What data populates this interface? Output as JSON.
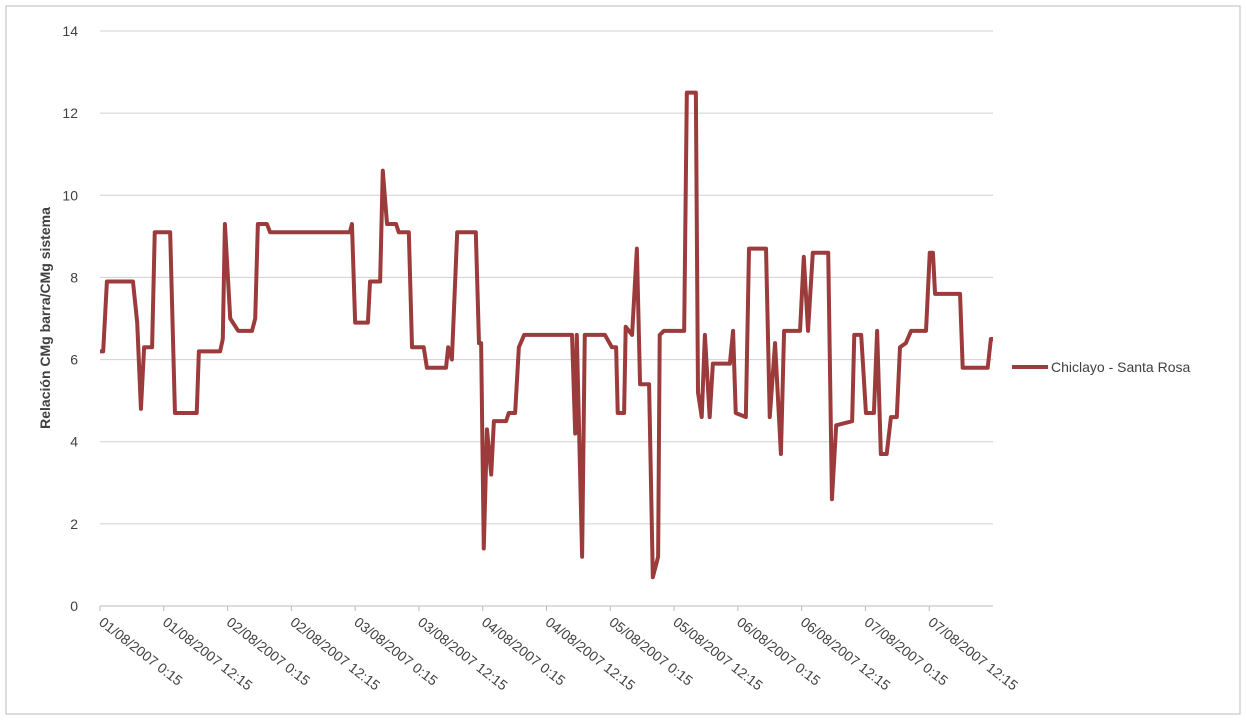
{
  "chart_data": {
    "type": "line",
    "y_label": "Relación CMg barra/CMg sistema",
    "x": [
      0,
      0.6,
      1.3,
      6.2,
      7.0,
      7.7,
      8.3,
      9.8,
      10.3,
      13.2,
      14.1,
      18.2,
      18.6,
      22.6,
      23.1,
      23.5,
      24.5,
      26.0,
      28.6,
      29.2,
      29.7,
      31.4,
      32.0,
      47.0,
      47.4,
      48.0,
      50.4,
      50.8,
      52.7,
      53.2,
      54.0,
      55.7,
      56.2,
      58.1,
      58.7,
      60.9,
      61.5,
      65.1,
      65.5,
      66.2,
      67.2,
      70.7,
      71.3,
      71.7,
      72.2,
      72.8,
      73.6,
      74.1,
      76.4,
      76.9,
      78.1,
      78.8,
      79.8,
      88.8,
      89.4,
      89.7,
      90.7,
      91.2,
      95.0,
      96.3,
      97.1,
      97.4,
      98.6,
      98.9,
      100.1,
      101.0,
      101.6,
      103.3,
      104.0,
      105.0,
      105.3,
      106.1,
      109.9,
      110.4,
      112.1,
      112.5,
      113.2,
      113.8,
      114.7,
      115.3,
      118.5,
      119.1,
      119.6,
      121.5,
      122.1,
      125.3,
      126.0,
      127.0,
      128.1,
      128.7,
      131.7,
      132.4,
      133.2,
      134.1,
      137.0,
      137.7,
      138.5,
      141.5,
      141.9,
      143.2,
      144.1,
      145.6,
      146.2,
      146.9,
      148.0,
      148.8,
      149.9,
      150.5,
      151.6,
      152.6,
      155.4,
      156.1,
      156.7,
      157.1,
      161.8,
      162.3,
      167.0,
      167.6,
      168
    ],
    "series": [
      {
        "name": "Chiclayo - Santa Rosa",
        "color": "#9b3b3b",
        "values": [
          6.2,
          6.2,
          7.9,
          7.9,
          6.9,
          4.8,
          6.3,
          6.3,
          9.1,
          9.1,
          4.7,
          4.7,
          6.2,
          6.2,
          6.5,
          9.3,
          7.0,
          6.7,
          6.7,
          7.0,
          9.3,
          9.3,
          9.1,
          9.1,
          9.3,
          6.9,
          6.9,
          7.9,
          7.9,
          10.6,
          9.3,
          9.3,
          9.1,
          9.1,
          6.3,
          6.3,
          5.8,
          5.8,
          6.3,
          6.0,
          9.1,
          9.1,
          6.4,
          6.4,
          1.4,
          4.3,
          3.2,
          4.5,
          4.5,
          4.7,
          4.7,
          6.3,
          6.6,
          6.6,
          4.2,
          6.6,
          1.2,
          6.6,
          6.6,
          6.3,
          6.3,
          4.7,
          4.7,
          6.8,
          6.6,
          8.7,
          5.4,
          5.4,
          0.7,
          1.2,
          6.6,
          6.7,
          6.7,
          12.5,
          12.5,
          5.2,
          4.6,
          6.6,
          4.6,
          5.9,
          5.9,
          6.7,
          4.7,
          4.6,
          8.7,
          8.7,
          4.6,
          6.4,
          3.7,
          6.7,
          6.7,
          8.5,
          6.7,
          8.6,
          8.6,
          2.6,
          4.4,
          4.5,
          6.6,
          6.6,
          4.7,
          4.7,
          6.7,
          3.7,
          3.7,
          4.6,
          4.6,
          6.3,
          6.4,
          6.7,
          6.7,
          8.6,
          8.6,
          7.6,
          7.6,
          5.8,
          5.8,
          6.5,
          6.5
        ]
      }
    ],
    "xlim": [
      0,
      168
    ],
    "xticks": [
      {
        "value": 0,
        "label": "01/08/2007 0:15"
      },
      {
        "value": 12,
        "label": "01/08/2007 12:15"
      },
      {
        "value": 24,
        "label": "02/08/2007 0:15"
      },
      {
        "value": 36,
        "label": "02/08/2007 12:15"
      },
      {
        "value": 48,
        "label": "03/08/2007 0:15"
      },
      {
        "value": 60,
        "label": "03/08/2007 12:15"
      },
      {
        "value": 72,
        "label": "04/08/2007 0:15"
      },
      {
        "value": 84,
        "label": "04/08/2007 12:15"
      },
      {
        "value": 96,
        "label": "05/08/2007 0:15"
      },
      {
        "value": 108,
        "label": "05/08/2007 12:15"
      },
      {
        "value": 120,
        "label": "06/08/2007 0:15"
      },
      {
        "value": 132,
        "label": "06/08/2007 12:15"
      },
      {
        "value": 144,
        "label": "07/08/2007 0:15"
      },
      {
        "value": 156,
        "label": "07/08/2007 12:15"
      }
    ],
    "ylim": [
      0,
      14
    ],
    "yticks": [
      0,
      2,
      4,
      6,
      8,
      10,
      12,
      14
    ],
    "grid": true,
    "legend": "right"
  }
}
